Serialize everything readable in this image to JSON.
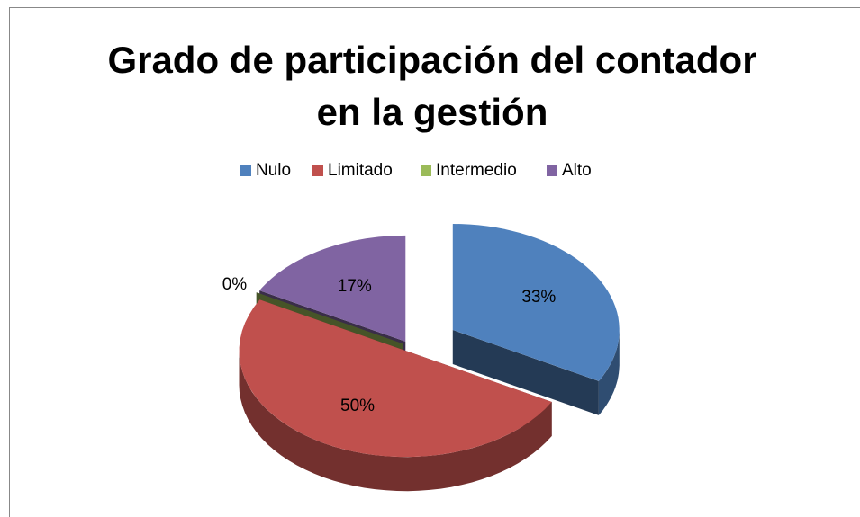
{
  "chart_data": {
    "type": "pie3d",
    "title": "Grado de participación del contador en la gestión",
    "categories": [
      "Nulo",
      "Limitado",
      "Intermedio",
      "Alto"
    ],
    "values": [
      33,
      50,
      0,
      17
    ],
    "value_labels": [
      "33%",
      "50%",
      "0%",
      "17%"
    ],
    "colors": [
      "#4f81bd",
      "#c0504d",
      "#9bbb59",
      "#8064a2"
    ],
    "legend": "top"
  }
}
